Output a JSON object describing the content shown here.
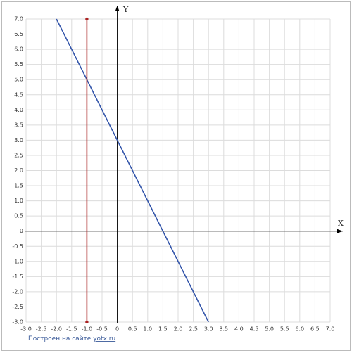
{
  "chart_data": {
    "type": "line",
    "xlabel": "X",
    "ylabel": "Y",
    "xlim": [
      -3,
      7
    ],
    "ylim": [
      -3,
      7
    ],
    "xticks": [
      {
        "value": -3,
        "label": "-3.0"
      },
      -2.5,
      {
        "value": -2,
        "label": "-2.0"
      },
      -1.5,
      {
        "value": -1,
        "label": "-1.0"
      },
      -0.5,
      0,
      0.5,
      {
        "value": 1,
        "label": "1.0"
      },
      1.5,
      {
        "value": 2,
        "label": "2.0"
      },
      2.5,
      {
        "value": 3,
        "label": "3.0"
      },
      3.5,
      {
        "value": 4,
        "label": "4.0"
      },
      4.5,
      {
        "value": 5,
        "label": "5.0"
      },
      5.5,
      {
        "value": 6,
        "label": "6.0"
      },
      6.5,
      {
        "value": 7,
        "label": "7.0"
      }
    ],
    "yticks": [
      {
        "value": -3,
        "label": "-3.0"
      },
      -2.5,
      {
        "value": -2,
        "label": "-2.0"
      },
      -1.5,
      {
        "value": -1,
        "label": "-1.0"
      },
      -0.5,
      0,
      0.5,
      {
        "value": 1,
        "label": "1.0"
      },
      1.5,
      {
        "value": 2,
        "label": "2.0"
      },
      2.5,
      {
        "value": 3,
        "label": "3.0"
      },
      3.5,
      {
        "value": 4,
        "label": "4.0"
      },
      4.5,
      {
        "value": 5,
        "label": "5.0"
      },
      5.5,
      {
        "value": 6,
        "label": "6.0"
      },
      6.5,
      {
        "value": 7,
        "label": "7.0"
      }
    ],
    "grid": true,
    "series": [
      {
        "color": "#3355aa",
        "x": [
          -2,
          3
        ],
        "values": [
          7,
          -3
        ],
        "markers": false
      },
      {
        "color": "#aa2222",
        "x": [
          -1,
          -1
        ],
        "values": [
          7,
          -3
        ],
        "markers": true
      }
    ],
    "footer": {
      "text": "Построен на сайте",
      "link": "yotx.ru"
    }
  }
}
